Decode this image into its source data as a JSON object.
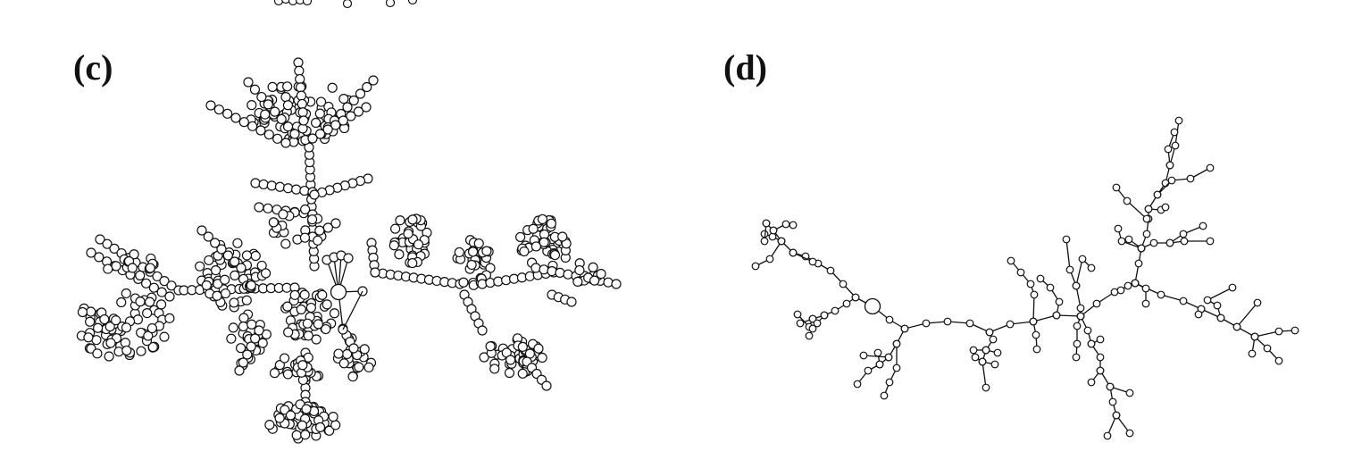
{
  "panels": [
    {
      "label": "(c)"
    },
    {
      "label": "(d)"
    }
  ],
  "colors": {
    "stroke": "#111111",
    "node_fill": "#ffffff",
    "background": "#ffffff"
  }
}
